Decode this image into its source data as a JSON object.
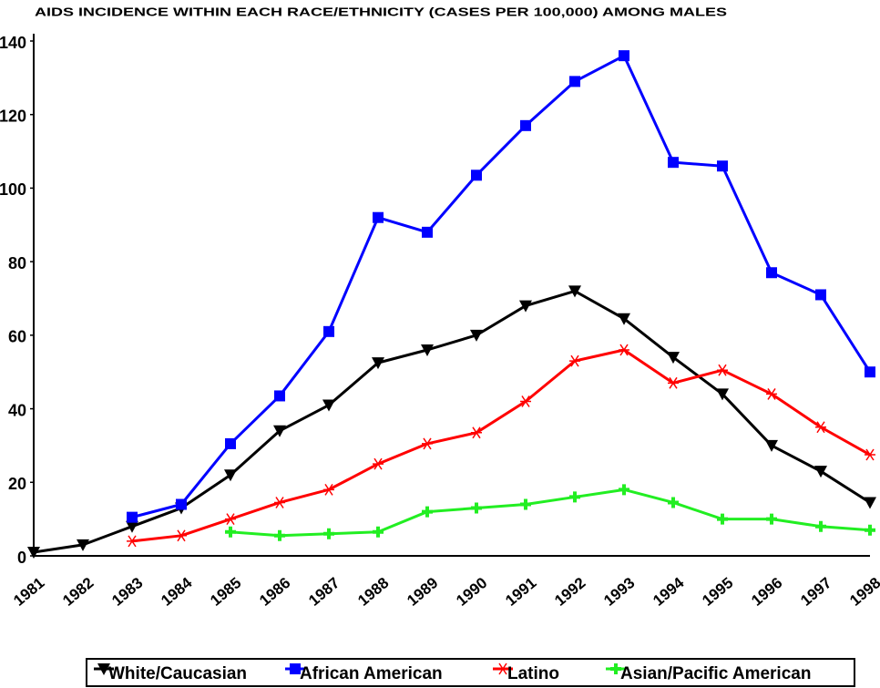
{
  "chart_data": {
    "type": "line",
    "title": "AIDS INCIDENCE WITHIN EACH RACE/ETHNICITY (CASES PER 100,000) AMONG MALES",
    "categories": [
      "1981",
      "1982",
      "1983",
      "1984",
      "1985",
      "1986",
      "1987",
      "1988",
      "1989",
      "1990",
      "1991",
      "1992",
      "1993",
      "1994",
      "1995",
      "1996",
      "1997",
      "1998"
    ],
    "series": [
      {
        "name": "White/Caucasian",
        "color": "#000000",
        "marker": "triangle-down",
        "values": [
          1,
          3,
          8,
          13,
          22,
          34,
          41,
          52.5,
          56,
          60,
          68,
          72,
          64.5,
          54,
          44,
          30,
          23,
          14.5
        ]
      },
      {
        "name": "African American",
        "color": "#0000ff",
        "marker": "square",
        "values": [
          null,
          null,
          10.5,
          14,
          30.5,
          43.5,
          61,
          92,
          88,
          103.5,
          117,
          129,
          136,
          107,
          106,
          77,
          71,
          50
        ]
      },
      {
        "name": "Latino",
        "color": "#ff0000",
        "marker": "star",
        "values": [
          null,
          null,
          4,
          5.5,
          10,
          14.5,
          18,
          25,
          30.5,
          33.5,
          42,
          53,
          56,
          47,
          50.5,
          44,
          35,
          27.5
        ]
      },
      {
        "name": "Asian/Pacific American",
        "color": "#22ee22",
        "marker": "plus",
        "values": [
          null,
          null,
          null,
          null,
          6.5,
          5.5,
          6,
          6.5,
          12,
          13,
          14,
          16,
          18,
          14.5,
          10,
          10,
          8,
          7
        ]
      }
    ],
    "ylim": [
      0,
      140
    ],
    "yticks": [
      0,
      20,
      40,
      60,
      80,
      100,
      120,
      140
    ],
    "grid": false,
    "legend": "bottom"
  }
}
